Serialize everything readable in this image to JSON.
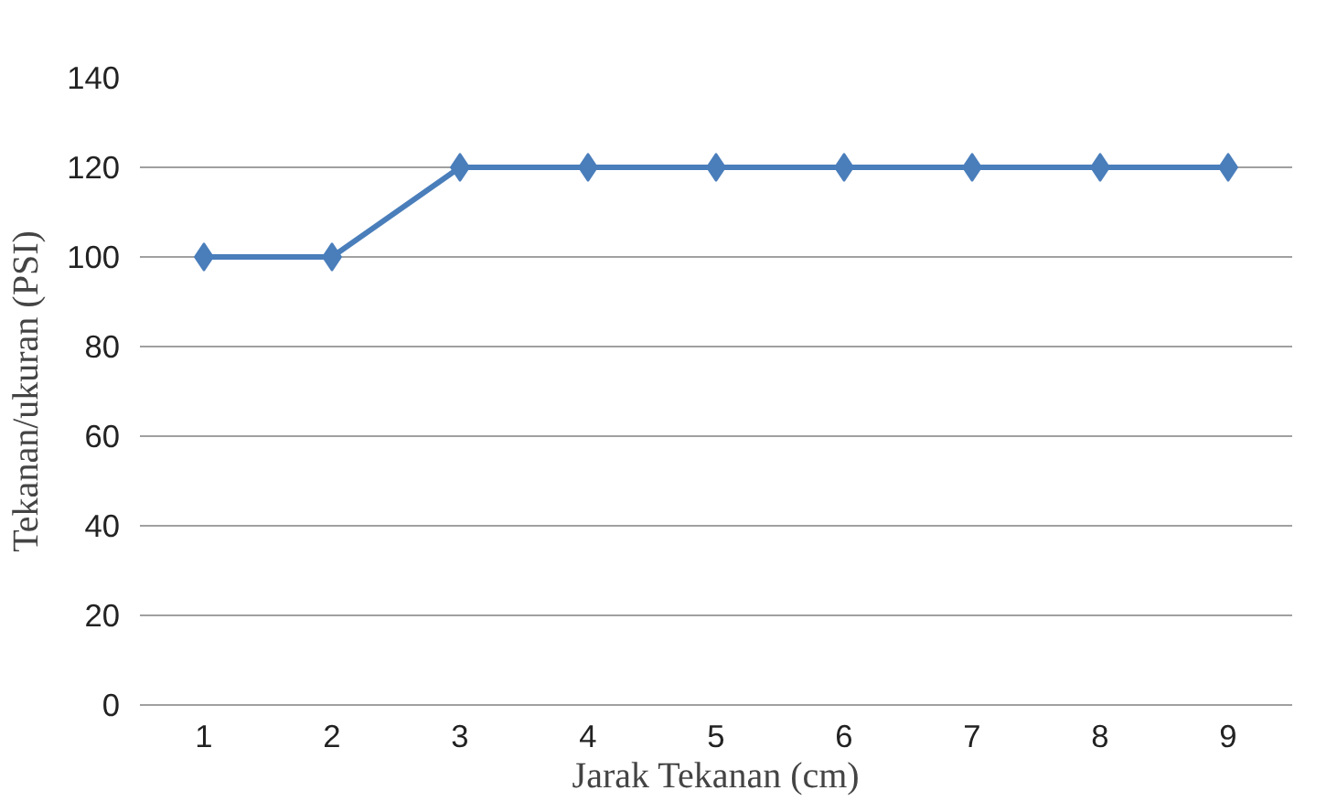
{
  "chart_data": {
    "type": "line",
    "xlabel": "Jarak Tekanan (cm)",
    "ylabel": "Tekanan/ukuran (PSI)",
    "categories": [
      "1",
      "2",
      "3",
      "4",
      "5",
      "6",
      "7",
      "8",
      "9"
    ],
    "series": [
      {
        "color": "#4a7ebb",
        "values": [
          100,
          100,
          120,
          120,
          120,
          120,
          120,
          120,
          120
        ]
      }
    ],
    "ylim": [
      0,
      140
    ],
    "yticks": [
      0,
      20,
      40,
      60,
      80,
      100,
      120,
      140
    ],
    "grid": "y",
    "marker": "diamond",
    "line_style": "solid"
  }
}
